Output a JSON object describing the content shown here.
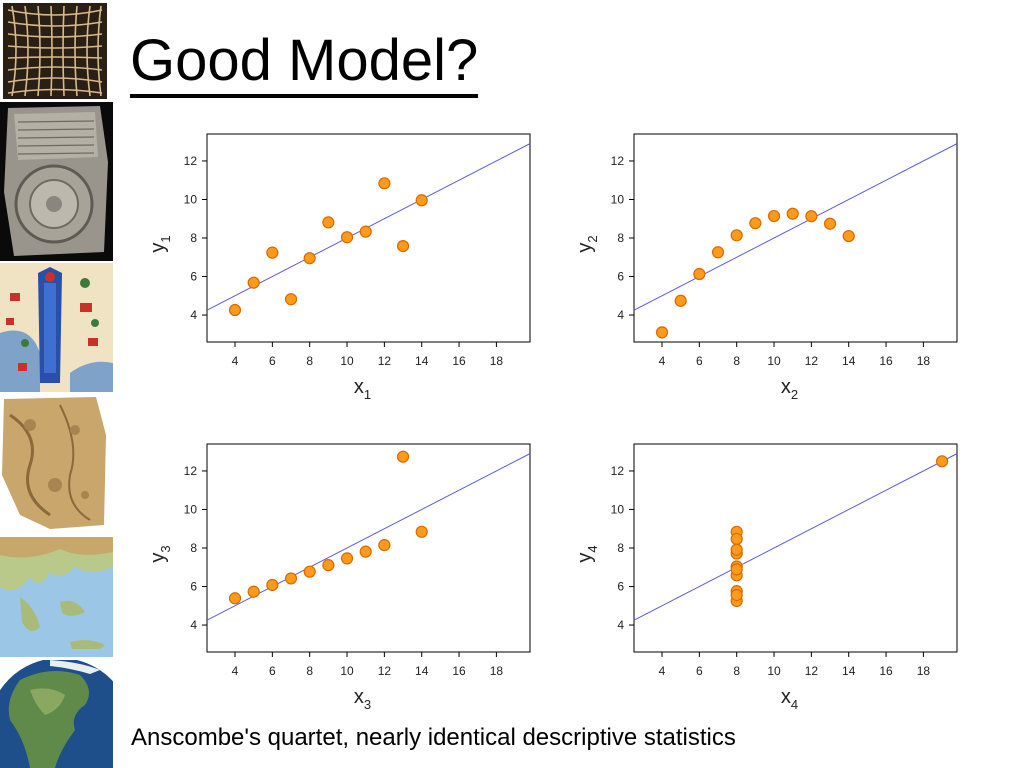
{
  "slide": {
    "title": "Good Model?",
    "caption": "Anscombe's quartet, nearly identical descriptive statistics"
  },
  "sidebar": {
    "images": [
      {
        "name": "grid-map-image"
      },
      {
        "name": "clay-tablet-map-image"
      },
      {
        "name": "medieval-map-image"
      },
      {
        "name": "parchment-map-image"
      },
      {
        "name": "mediterranean-relief-map-image"
      },
      {
        "name": "north-america-globe-image"
      }
    ]
  },
  "colors": {
    "marker_fill": "#FF9A1A",
    "marker_stroke": "#D96A00",
    "fit_line": "#5B5BE6",
    "frame": "#000000",
    "title_text": "#000000"
  },
  "chart_data": [
    {
      "type": "scatter",
      "title": "",
      "xlabel": "x",
      "xlabel_sub": "1",
      "ylabel": "y",
      "ylabel_sub": "1",
      "xlim": [
        2.5,
        19.8
      ],
      "ylim": [
        2.6,
        13.4
      ],
      "xticks": [
        4,
        6,
        8,
        10,
        12,
        14,
        16,
        18
      ],
      "yticks": [
        4,
        6,
        8,
        10,
        12
      ],
      "grid": false,
      "points": [
        {
          "x": 10,
          "y": 8.04
        },
        {
          "x": 8,
          "y": 6.95
        },
        {
          "x": 13,
          "y": 7.58
        },
        {
          "x": 9,
          "y": 8.81
        },
        {
          "x": 11,
          "y": 8.33
        },
        {
          "x": 14,
          "y": 9.96
        },
        {
          "x": 6,
          "y": 7.24
        },
        {
          "x": 4,
          "y": 4.26
        },
        {
          "x": 12,
          "y": 10.84
        },
        {
          "x": 7,
          "y": 4.82
        },
        {
          "x": 5,
          "y": 5.68
        }
      ],
      "fit": {
        "intercept": 3.0,
        "slope": 0.5
      }
    },
    {
      "type": "scatter",
      "title": "",
      "xlabel": "x",
      "xlabel_sub": "2",
      "ylabel": "y",
      "ylabel_sub": "2",
      "xlim": [
        2.5,
        19.8
      ],
      "ylim": [
        2.6,
        13.4
      ],
      "xticks": [
        4,
        6,
        8,
        10,
        12,
        14,
        16,
        18
      ],
      "yticks": [
        4,
        6,
        8,
        10,
        12
      ],
      "grid": false,
      "points": [
        {
          "x": 10,
          "y": 9.14
        },
        {
          "x": 8,
          "y": 8.14
        },
        {
          "x": 13,
          "y": 8.74
        },
        {
          "x": 9,
          "y": 8.77
        },
        {
          "x": 11,
          "y": 9.26
        },
        {
          "x": 14,
          "y": 8.1
        },
        {
          "x": 6,
          "y": 6.13
        },
        {
          "x": 4,
          "y": 3.1
        },
        {
          "x": 12,
          "y": 9.13
        },
        {
          "x": 7,
          "y": 7.26
        },
        {
          "x": 5,
          "y": 4.74
        }
      ],
      "fit": {
        "intercept": 3.0,
        "slope": 0.5
      }
    },
    {
      "type": "scatter",
      "title": "",
      "xlabel": "x",
      "xlabel_sub": "3",
      "ylabel": "y",
      "ylabel_sub": "3",
      "xlim": [
        2.5,
        19.8
      ],
      "ylim": [
        2.6,
        13.4
      ],
      "xticks": [
        4,
        6,
        8,
        10,
        12,
        14,
        16,
        18
      ],
      "yticks": [
        4,
        6,
        8,
        10,
        12
      ],
      "grid": false,
      "points": [
        {
          "x": 10,
          "y": 7.46
        },
        {
          "x": 8,
          "y": 6.77
        },
        {
          "x": 13,
          "y": 12.74
        },
        {
          "x": 9,
          "y": 7.11
        },
        {
          "x": 11,
          "y": 7.81
        },
        {
          "x": 14,
          "y": 8.84
        },
        {
          "x": 6,
          "y": 6.08
        },
        {
          "x": 4,
          "y": 5.39
        },
        {
          "x": 12,
          "y": 8.15
        },
        {
          "x": 7,
          "y": 6.42
        },
        {
          "x": 5,
          "y": 5.73
        }
      ],
      "fit": {
        "intercept": 3.0,
        "slope": 0.5
      }
    },
    {
      "type": "scatter",
      "title": "",
      "xlabel": "x",
      "xlabel_sub": "4",
      "ylabel": "y",
      "ylabel_sub": "4",
      "xlim": [
        2.5,
        19.8
      ],
      "ylim": [
        2.6,
        13.4
      ],
      "xticks": [
        4,
        6,
        8,
        10,
        12,
        14,
        16,
        18
      ],
      "yticks": [
        4,
        6,
        8,
        10,
        12
      ],
      "grid": false,
      "points": [
        {
          "x": 8,
          "y": 6.58
        },
        {
          "x": 8,
          "y": 5.76
        },
        {
          "x": 8,
          "y": 7.71
        },
        {
          "x": 8,
          "y": 8.84
        },
        {
          "x": 8,
          "y": 8.47
        },
        {
          "x": 8,
          "y": 7.04
        },
        {
          "x": 8,
          "y": 5.25
        },
        {
          "x": 19,
          "y": 12.5
        },
        {
          "x": 8,
          "y": 5.56
        },
        {
          "x": 8,
          "y": 7.91
        },
        {
          "x": 8,
          "y": 6.89
        }
      ],
      "fit": {
        "intercept": 3.0,
        "slope": 0.5
      }
    }
  ]
}
